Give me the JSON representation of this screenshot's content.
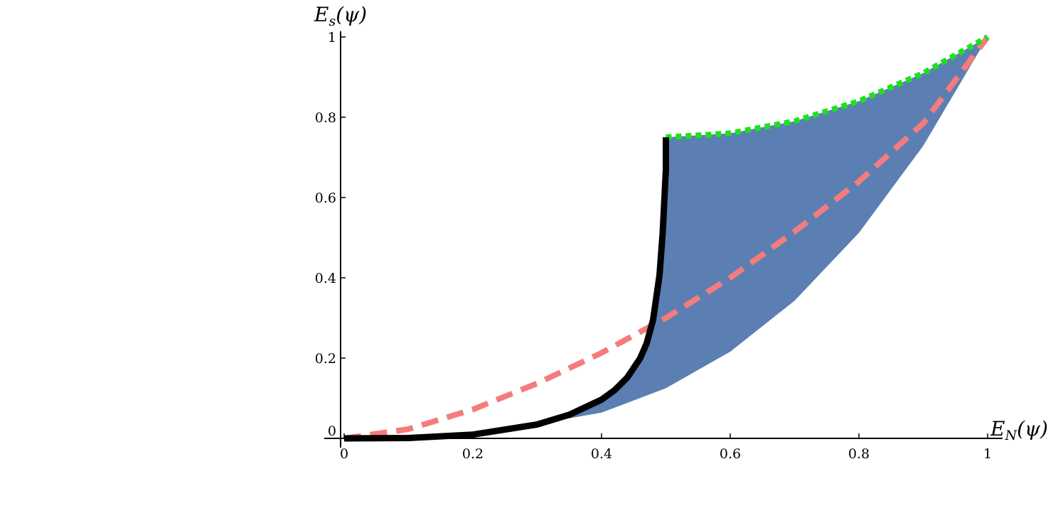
{
  "chart_data": {
    "type": "area",
    "title": "",
    "xlabel": "E_N(ψ)",
    "ylabel": "E_s(ψ)",
    "xlim": [
      0,
      1
    ],
    "ylim": [
      0,
      1
    ],
    "x_ticks": [
      "0",
      "0.2",
      "0.4",
      "0.6",
      "0.8",
      "1"
    ],
    "y_ticks": [
      "0",
      "0.2",
      "0.4",
      "0.6",
      "0.8",
      "1"
    ],
    "grid": false,
    "legend": "none",
    "colors": {
      "region": "#5b7fb2",
      "dashed": "#f47c7c",
      "dotted": "#1ee11e",
      "solid": "#000000"
    },
    "series": [
      {
        "style": "filled-region",
        "upper_x": [
          0,
          0.1,
          0.2,
          0.3,
          0.35,
          0.4,
          0.42,
          0.44,
          0.46,
          0.47,
          0.48,
          0.49,
          0.5,
          0.6,
          0.7,
          0.8,
          0.9,
          1.0
        ],
        "upper_y": [
          0,
          0.0009,
          0.0093,
          0.0347,
          0.059,
          0.0965,
          0.1197,
          0.1515,
          0.1995,
          0.236,
          0.2943,
          0.4059,
          0.75,
          0.76,
          0.79,
          0.84,
          0.91,
          1.0
        ],
        "lower_x": [
          0,
          0.1,
          0.2,
          0.3,
          0.4,
          0.5,
          0.6,
          0.7,
          0.8,
          0.9,
          1.0
        ],
        "lower_y": [
          0,
          0.004,
          0.016,
          0.036,
          0.064,
          0.125,
          0.216,
          0.343,
          0.512,
          0.729,
          1.0
        ]
      },
      {
        "style": "dashed",
        "x": [
          0,
          0.1,
          0.2,
          0.3,
          0.4,
          0.5,
          0.6,
          0.7,
          0.8,
          0.9,
          1.0
        ],
        "y": [
          0,
          0.023,
          0.072,
          0.137,
          0.213,
          0.3,
          0.4,
          0.515,
          0.64,
          0.785,
          1.0
        ]
      },
      {
        "style": "dotted",
        "x": [
          0.5,
          0.6,
          0.7,
          0.8,
          0.9,
          1.0
        ],
        "y": [
          0.75,
          0.76,
          0.79,
          0.84,
          0.91,
          1.0
        ]
      },
      {
        "style": "solid",
        "x": [
          0,
          0.1,
          0.2,
          0.3,
          0.35,
          0.4,
          0.42,
          0.44,
          0.46,
          0.47,
          0.48,
          0.49,
          0.495,
          0.5,
          0.5
        ],
        "y": [
          0,
          0.0009,
          0.0093,
          0.0347,
          0.059,
          0.0965,
          0.1197,
          0.1515,
          0.1995,
          0.236,
          0.2943,
          0.4059,
          0.512,
          0.67,
          0.75
        ]
      }
    ]
  }
}
